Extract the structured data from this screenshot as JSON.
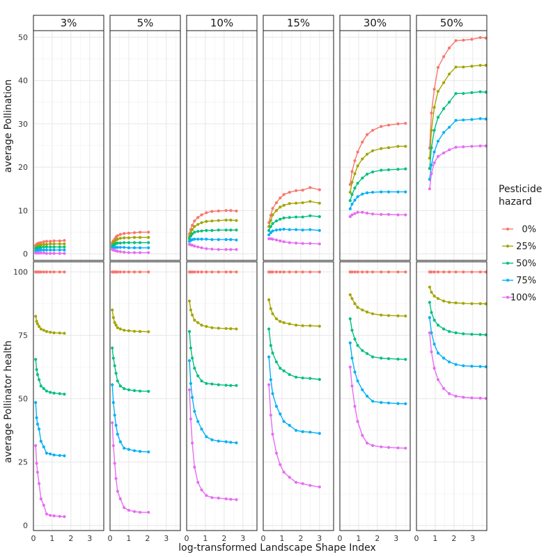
{
  "chart_data": {
    "type": "line",
    "title": "",
    "xlabel": "log-transformed Landscape Shape Index",
    "xlim": [
      0,
      3.75
    ],
    "x_ticks": [
      "0",
      "1",
      "2",
      "3"
    ],
    "facet_columns": [
      "3%",
      "5%",
      "10%",
      "15%",
      "30%",
      "50%"
    ],
    "rows": [
      {
        "ylabel": "average Pollination",
        "ylim": [
          -1.5,
          51.5
        ],
        "y_ticks": [
          "0",
          "10",
          "20",
          "30",
          "40",
          "50"
        ]
      },
      {
        "ylabel": "average Pollinator health",
        "ylim": [
          -2,
          104
        ],
        "y_ticks": [
          "0",
          "25",
          "50",
          "75",
          "100"
        ]
      }
    ],
    "legend": {
      "title_line1": "Pesticide",
      "title_line2": "hazard",
      "position": "right"
    },
    "series": [
      {
        "name": "0%",
        "color": "#F8766D"
      },
      {
        "name": "25%",
        "color": "#A3A500"
      },
      {
        "name": "50%",
        "color": "#00BF7D"
      },
      {
        "name": "75%",
        "color": "#00B0F6"
      },
      {
        "name": "100%",
        "color": "#E76BF3"
      }
    ],
    "panels": [
      {
        "row": 0,
        "col": 0,
        "x": [
          0.12,
          0.17,
          0.22,
          0.3,
          0.4,
          0.55,
          0.7,
          0.9,
          1.1,
          1.4,
          1.65
        ],
        "series_values": [
          [
            2.0,
            2.2,
            2.4,
            2.5,
            2.6,
            2.8,
            2.9,
            2.9,
            3.0,
            3.0,
            3.1
          ],
          [
            1.6,
            1.8,
            1.9,
            2.0,
            2.1,
            2.2,
            2.2,
            2.3,
            2.3,
            2.3,
            2.3
          ],
          [
            1.2,
            1.3,
            1.4,
            1.5,
            1.5,
            1.6,
            1.6,
            1.6,
            1.6,
            1.6,
            1.6
          ],
          [
            0.7,
            0.8,
            0.8,
            0.9,
            0.9,
            0.9,
            0.9,
            0.9,
            0.9,
            0.9,
            0.9
          ],
          [
            0.2,
            0.2,
            0.2,
            0.2,
            0.2,
            0.2,
            0.1,
            0.1,
            0.1,
            0.1,
            0.1
          ]
        ]
      },
      {
        "row": 0,
        "col": 1,
        "x": [
          0.12,
          0.18,
          0.25,
          0.32,
          0.4,
          0.55,
          0.75,
          1.0,
          1.3,
          1.6,
          2.05
        ],
        "series_values": [
          [
            2.6,
            3.0,
            3.4,
            3.9,
            4.2,
            4.5,
            4.7,
            4.8,
            4.9,
            5.0,
            5.0
          ],
          [
            2.2,
            2.6,
            2.9,
            3.2,
            3.4,
            3.6,
            3.7,
            3.7,
            3.8,
            3.8,
            3.8
          ],
          [
            1.8,
            2.0,
            2.2,
            2.4,
            2.5,
            2.5,
            2.6,
            2.6,
            2.6,
            2.6,
            2.6
          ],
          [
            1.4,
            1.5,
            1.5,
            1.5,
            1.5,
            1.5,
            1.5,
            1.4,
            1.4,
            1.4,
            1.4
          ],
          [
            1.0,
            0.9,
            0.8,
            0.7,
            0.6,
            0.5,
            0.4,
            0.3,
            0.3,
            0.3,
            0.3
          ]
        ]
      },
      {
        "row": 0,
        "col": 2,
        "x": [
          0.15,
          0.22,
          0.3,
          0.42,
          0.6,
          0.8,
          1.05,
          1.35,
          1.7,
          2.1,
          2.35,
          2.65
        ],
        "series_values": [
          [
            4.6,
            5.6,
            6.6,
            7.6,
            8.4,
            9.0,
            9.5,
            9.8,
            9.9,
            10.0,
            10.0,
            9.9
          ],
          [
            4.0,
            4.9,
            5.6,
            6.3,
            6.8,
            7.2,
            7.5,
            7.6,
            7.7,
            7.8,
            7.8,
            7.7
          ],
          [
            3.5,
            4.1,
            4.6,
            5.0,
            5.2,
            5.3,
            5.4,
            5.4,
            5.5,
            5.5,
            5.5,
            5.5
          ],
          [
            2.9,
            3.1,
            3.3,
            3.4,
            3.4,
            3.4,
            3.4,
            3.3,
            3.3,
            3.3,
            3.3,
            3.2
          ],
          [
            2.2,
            2.1,
            2.0,
            1.8,
            1.6,
            1.4,
            1.2,
            1.1,
            1.0,
            1.0,
            1.0,
            1.0
          ]
        ]
      },
      {
        "row": 0,
        "col": 3,
        "x": [
          0.3,
          0.4,
          0.5,
          0.7,
          0.9,
          1.1,
          1.4,
          1.75,
          2.1,
          2.5,
          3.0
        ],
        "series_values": [
          [
            7.2,
            8.9,
            10.5,
            11.8,
            12.9,
            13.7,
            14.2,
            14.6,
            14.7,
            15.3,
            14.8
          ],
          [
            6.3,
            7.7,
            9.0,
            10.0,
            10.8,
            11.2,
            11.6,
            11.7,
            11.8,
            12.1,
            11.7
          ],
          [
            5.4,
            6.3,
            7.0,
            7.6,
            8.0,
            8.3,
            8.4,
            8.5,
            8.5,
            8.8,
            8.6
          ],
          [
            4.4,
            4.9,
            5.3,
            5.5,
            5.6,
            5.7,
            5.6,
            5.6,
            5.5,
            5.6,
            5.4
          ],
          [
            3.5,
            3.5,
            3.4,
            3.2,
            3.0,
            2.8,
            2.6,
            2.5,
            2.4,
            2.4,
            2.3
          ]
        ]
      },
      {
        "row": 0,
        "col": 4,
        "x": [
          0.55,
          0.65,
          0.8,
          0.95,
          1.2,
          1.45,
          1.75,
          2.2,
          2.6,
          3.1,
          3.5
        ],
        "series_values": [
          [
            16.0,
            19.0,
            21.5,
            23.5,
            25.8,
            27.5,
            28.5,
            29.4,
            29.7,
            30.0,
            30.1
          ],
          [
            14.2,
            16.5,
            18.5,
            20.3,
            21.9,
            23.0,
            23.8,
            24.3,
            24.5,
            24.8,
            24.8
          ],
          [
            12.3,
            13.7,
            15.2,
            16.3,
            17.5,
            18.4,
            18.9,
            19.3,
            19.4,
            19.5,
            19.6
          ],
          [
            10.4,
            11.5,
            12.4,
            13.2,
            13.8,
            14.1,
            14.2,
            14.3,
            14.3,
            14.3,
            14.3
          ],
          [
            8.6,
            9.0,
            9.3,
            9.6,
            9.6,
            9.4,
            9.2,
            9.1,
            9.1,
            9.0,
            9.0
          ]
        ]
      },
      {
        "row": 0,
        "col": 5,
        "x": [
          0.7,
          0.8,
          0.95,
          1.15,
          1.45,
          1.75,
          2.1,
          2.5,
          2.95,
          3.4,
          3.7
        ],
        "series_values": [
          [
            24.4,
            32.5,
            38.0,
            43.0,
            45.5,
            47.5,
            49.2,
            49.3,
            49.5,
            49.9,
            49.8
          ],
          [
            22.1,
            28.5,
            33.8,
            37.5,
            39.5,
            41.5,
            43.1,
            43.1,
            43.3,
            43.5,
            43.5
          ],
          [
            19.7,
            24.5,
            28.5,
            31.5,
            33.5,
            35.0,
            37.0,
            37.0,
            37.2,
            37.4,
            37.3
          ],
          [
            17.2,
            20.5,
            23.5,
            26.0,
            28.0,
            29.2,
            30.8,
            30.9,
            31.0,
            31.2,
            31.1
          ],
          [
            15.0,
            18.5,
            21.0,
            22.5,
            23.3,
            24.0,
            24.6,
            24.7,
            24.8,
            24.9,
            24.9
          ]
        ]
      },
      {
        "row": 1,
        "col": 0,
        "x": [
          0.12,
          0.17,
          0.22,
          0.3,
          0.4,
          0.55,
          0.7,
          0.9,
          1.1,
          1.4,
          1.65
        ],
        "series_values": [
          [
            100,
            100,
            100,
            100,
            100,
            100,
            100,
            100,
            100,
            100,
            100
          ],
          [
            82.5,
            80.5,
            79.5,
            78.5,
            77.5,
            77,
            76.5,
            76.2,
            76,
            75.9,
            75.8
          ],
          [
            65.5,
            61.5,
            59.5,
            57.5,
            55,
            54,
            53,
            52.5,
            52.2,
            52,
            51.8
          ],
          [
            48.5,
            42.5,
            40,
            38,
            33.2,
            31,
            28.5,
            28.2,
            27.8,
            27.6,
            27.5
          ],
          [
            31.5,
            24.5,
            21,
            16.5,
            10.5,
            8,
            4.5,
            4,
            3.8,
            3.6,
            3.5
          ]
        ]
      },
      {
        "row": 1,
        "col": 1,
        "x": [
          0.12,
          0.18,
          0.25,
          0.32,
          0.4,
          0.55,
          0.75,
          1.0,
          1.3,
          1.6,
          2.05
        ],
        "series_values": [
          [
            100,
            100,
            100,
            100,
            100,
            100,
            100,
            100,
            100,
            100,
            100
          ],
          [
            85,
            82,
            80,
            79,
            78,
            77.5,
            77,
            76.8,
            76.6,
            76.5,
            76.4
          ],
          [
            70,
            66,
            63,
            60,
            57,
            55,
            54,
            53.5,
            53.2,
            53,
            52.9
          ],
          [
            55.5,
            48.5,
            43.5,
            39.5,
            36,
            33,
            30.5,
            30,
            29.5,
            29.2,
            29
          ],
          [
            40.5,
            31.5,
            24.5,
            18.5,
            13.5,
            10.5,
            7,
            6,
            5.5,
            5.2,
            5.2
          ]
        ]
      },
      {
        "row": 1,
        "col": 2,
        "x": [
          0.15,
          0.22,
          0.3,
          0.42,
          0.6,
          0.8,
          1.05,
          1.35,
          1.7,
          2.1,
          2.35,
          2.65
        ],
        "series_values": [
          [
            100,
            100,
            100,
            100,
            100,
            100,
            100,
            100,
            100,
            100,
            100,
            100
          ],
          [
            88.5,
            85,
            83,
            81,
            80,
            79,
            78.5,
            78,
            77.8,
            77.7,
            77.6,
            77.5
          ],
          [
            76.5,
            70,
            66,
            62,
            59,
            57,
            56,
            55.8,
            55.5,
            55.3,
            55.2,
            55.2
          ],
          [
            65,
            56,
            50.5,
            45,
            41,
            38,
            35,
            33.8,
            33.3,
            33,
            32.8,
            32.6
          ],
          [
            53.5,
            42,
            32.5,
            23,
            17,
            14,
            11.8,
            11,
            10.8,
            10.5,
            10.3,
            10.2
          ]
        ]
      },
      {
        "row": 1,
        "col": 3,
        "x": [
          0.3,
          0.4,
          0.5,
          0.7,
          0.9,
          1.1,
          1.4,
          1.75,
          2.1,
          2.5,
          3.0
        ],
        "series_values": [
          [
            100,
            100,
            100,
            100,
            100,
            100,
            100,
            100,
            100,
            100,
            100
          ],
          [
            89,
            85.5,
            83.5,
            81.5,
            80.5,
            80,
            79.5,
            79,
            78.8,
            78.8,
            78.6
          ],
          [
            77.5,
            71,
            68,
            64.5,
            62,
            61,
            59.5,
            58.5,
            58.2,
            58,
            57.6
          ],
          [
            66.5,
            57.5,
            52,
            47,
            44,
            41,
            39.5,
            37.5,
            37,
            36.8,
            36.3
          ],
          [
            55.5,
            43.5,
            36,
            28.5,
            24,
            21,
            19,
            17,
            16.5,
            15.8,
            15.2
          ]
        ]
      },
      {
        "row": 1,
        "col": 4,
        "x": [
          0.55,
          0.65,
          0.8,
          0.95,
          1.2,
          1.45,
          1.75,
          2.2,
          2.6,
          3.1,
          3.5
        ],
        "series_values": [
          [
            100,
            100,
            100,
            100,
            100,
            100,
            100,
            100,
            100,
            100,
            100
          ],
          [
            91,
            89.5,
            87.5,
            86,
            85,
            84.2,
            83.5,
            83,
            82.8,
            82.7,
            82.6
          ],
          [
            81.5,
            77,
            73.5,
            71,
            69,
            67.8,
            66.5,
            66,
            65.8,
            65.6,
            65.5
          ],
          [
            72,
            66,
            60.5,
            57,
            53.5,
            51,
            49,
            48.5,
            48.3,
            48.1,
            48
          ],
          [
            62.5,
            55,
            47,
            41,
            35.5,
            32.5,
            31.5,
            31,
            30.8,
            30.6,
            30.5
          ]
        ]
      },
      {
        "row": 1,
        "col": 5,
        "x": [
          0.7,
          0.8,
          0.95,
          1.15,
          1.45,
          1.75,
          2.1,
          2.5,
          2.95,
          3.4,
          3.7
        ],
        "series_values": [
          [
            100,
            100,
            100,
            100,
            100,
            100,
            100,
            100,
            100,
            100,
            100
          ],
          [
            94,
            92,
            90.5,
            89.5,
            88.5,
            88,
            87.8,
            87.6,
            87.5,
            87.5,
            87.4
          ],
          [
            88,
            84,
            81,
            79,
            77.5,
            76.5,
            76,
            75.6,
            75.4,
            75.3,
            75.2
          ],
          [
            82,
            76,
            71.5,
            68,
            66,
            64.5,
            63.5,
            63,
            62.8,
            62.7,
            62.6
          ],
          [
            76,
            68.5,
            62,
            57.5,
            54,
            52,
            51,
            50.6,
            50.3,
            50.2,
            50.1
          ]
        ]
      }
    ]
  }
}
